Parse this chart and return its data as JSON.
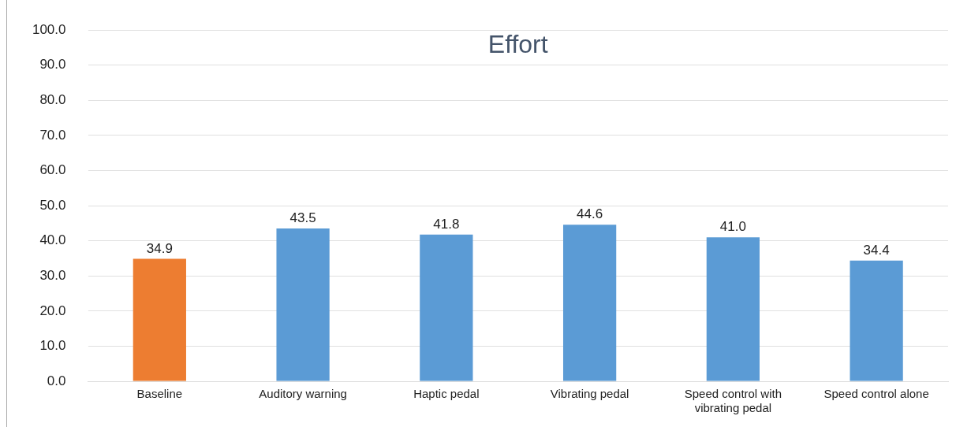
{
  "chart_data": {
    "type": "bar",
    "title": "Effort",
    "categories": [
      "Baseline",
      "Auditory warning",
      "Haptic pedal",
      "Vibrating pedal",
      "Speed control with vibrating pedal",
      "Speed control alone"
    ],
    "values": [
      34.9,
      43.5,
      41.8,
      44.6,
      41.0,
      34.4
    ],
    "value_labels": [
      "34.9",
      "43.5",
      "41.8",
      "44.6",
      "41.0",
      "34.4"
    ],
    "colors": [
      "#ed7d31",
      "#5b9bd5",
      "#5b9bd5",
      "#5b9bd5",
      "#5b9bd5",
      "#5b9bd5"
    ],
    "ylim": [
      0,
      100
    ],
    "yticks": [
      {
        "value": 0,
        "label": "0.0"
      },
      {
        "value": 10,
        "label": "10.0"
      },
      {
        "value": 20,
        "label": "20.0"
      },
      {
        "value": 30,
        "label": "30.0"
      },
      {
        "value": 40,
        "label": "40.0"
      },
      {
        "value": 50,
        "label": "50.0"
      },
      {
        "value": 60,
        "label": "60.0"
      },
      {
        "value": 70,
        "label": "70.0"
      },
      {
        "value": 80,
        "label": "80.0"
      },
      {
        "value": 90,
        "label": "90.0"
      },
      {
        "value": 100,
        "label": "100.0"
      }
    ],
    "grid": "y",
    "legend": false
  }
}
